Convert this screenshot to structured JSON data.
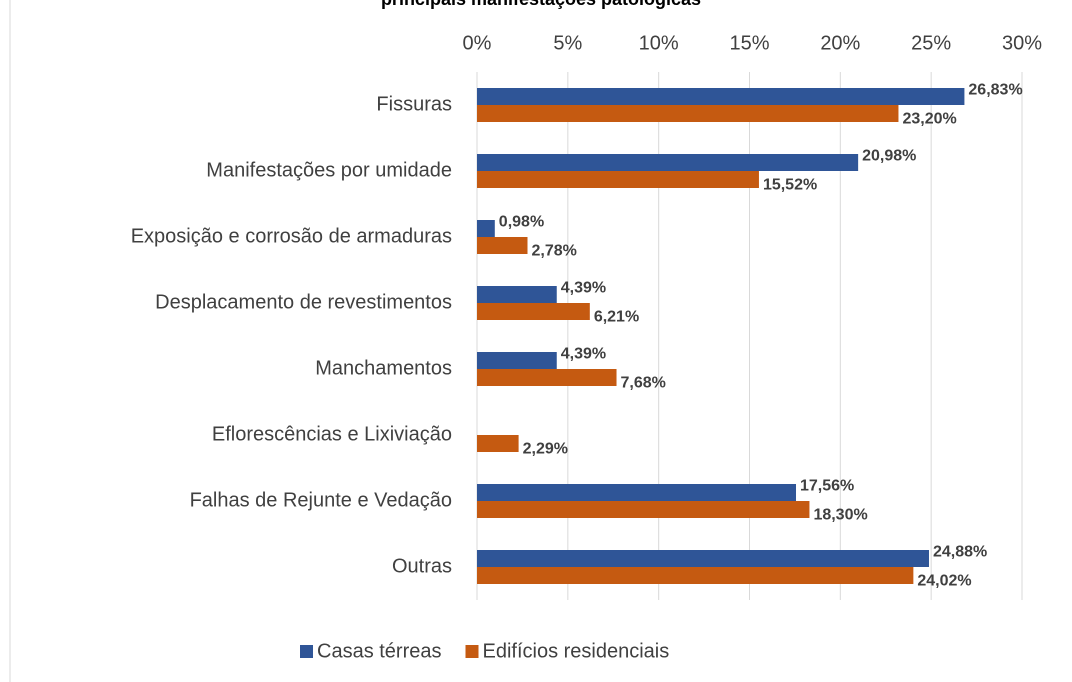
{
  "chart_data": {
    "type": "bar",
    "orientation": "horizontal",
    "title": "principais manifestações patológicas",
    "categories": [
      "Fissuras",
      "Manifestações por umidade",
      "Exposição e corrosão de armaduras",
      "Desplacamento de revestimentos",
      "Manchamentos",
      "Eflorescências e Lixiviação",
      "Falhas de Rejunte e Vedação",
      "Outras"
    ],
    "series": [
      {
        "name": "Casas térreas",
        "color": "#2f5597",
        "values": [
          26.83,
          20.98,
          0.98,
          4.39,
          4.39,
          null,
          17.56,
          24.88
        ],
        "value_labels": [
          "26,83%",
          "20,98%",
          "0,98%",
          "4,39%",
          "4,39%",
          null,
          "17,56%",
          "24,88%"
        ]
      },
      {
        "name": "Edifícios residenciais",
        "color": "#c55a11",
        "values": [
          23.2,
          15.52,
          2.78,
          6.21,
          7.68,
          2.29,
          18.3,
          24.02
        ],
        "value_labels": [
          "23,20%",
          "15,52%",
          "2,78%",
          "6,21%",
          "7,68%",
          "2,29%",
          "18,30%",
          "24,02%"
        ]
      }
    ],
    "xlim": [
      0,
      30
    ],
    "xticks": [
      {
        "value": 0,
        "label": "0%"
      },
      {
        "value": 5,
        "label": "5%"
      },
      {
        "value": 10,
        "label": "10%"
      },
      {
        "value": 15,
        "label": "15%"
      },
      {
        "value": 20,
        "label": "20%"
      },
      {
        "value": 25,
        "label": "25%"
      },
      {
        "value": 30,
        "label": "30%"
      }
    ],
    "grid": true,
    "legend": "bottom"
  }
}
